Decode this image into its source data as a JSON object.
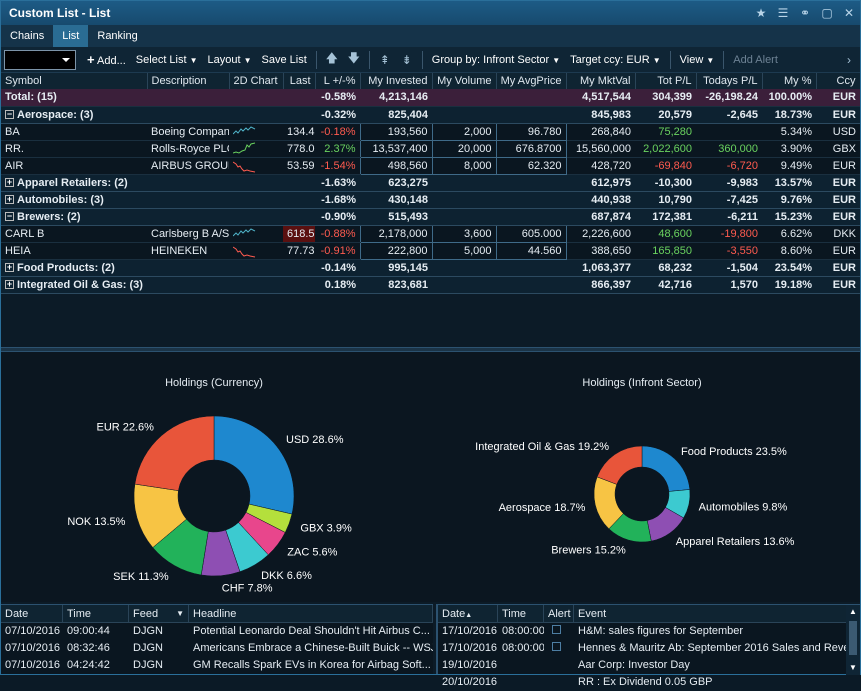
{
  "window": {
    "title": "Custom List - List"
  },
  "tabs": [
    "Chains",
    "List",
    "Ranking"
  ],
  "toolbar": {
    "add": "Add...",
    "select_list": "Select List",
    "layout": "Layout",
    "save_list": "Save List",
    "group_by": "Group by: Infront Sector",
    "target_ccy": "Target ccy: EUR",
    "view": "View",
    "add_alert": "Add Alert"
  },
  "columns": [
    "Symbol",
    "Description",
    "2D Chart",
    "Last",
    "L +/-%",
    "My Invested",
    "My Volume",
    "My AvgPrice",
    "My MktVal",
    "Tot P/L",
    "Todays P/L",
    "My %",
    "Ccy"
  ],
  "rows": [
    {
      "type": "total",
      "symbol": "Total: (15)",
      "desc": "",
      "last": "",
      "chg": "-0.58%",
      "invested": "4,213,146",
      "volume": "",
      "avg": "",
      "mktval": "4,517,544",
      "totpl": "304,399",
      "todpl": "-26,198.24",
      "pct": "100.00%",
      "ccy": "EUR"
    },
    {
      "type": "group",
      "open": true,
      "symbol": "Aerospace: (3)",
      "chg": "-0.32%",
      "invested": "825,404",
      "mktval": "845,983",
      "totpl": "20,579",
      "todpl": "-2,645",
      "pct": "18.73%",
      "ccy": "EUR"
    },
    {
      "type": "item",
      "symbol": "BA",
      "desc": "Boeing Company",
      "last": "134.42",
      "chg": "-0.18%",
      "invested": "193,560",
      "volume": "2,000",
      "avg": "96.780",
      "mktval": "268,840",
      "totpl": "75,280",
      "todpl": "",
      "pct": "5.34%",
      "ccy": "USD",
      "spark": "teal"
    },
    {
      "type": "item",
      "symbol": "RR.",
      "desc": "Rolls-Royce PLC",
      "last": "778.00",
      "chg": "2.37%",
      "invested": "13,537,400",
      "volume": "20,000",
      "avg": "676.8700",
      "mktval": "15,560,000",
      "totpl": "2,022,600",
      "todpl": "360,000",
      "pct": "3.90%",
      "ccy": "GBX",
      "spark": "green"
    },
    {
      "type": "item",
      "symbol": "AIR",
      "desc": "AIRBUS GROUP",
      "last": "53.59",
      "chg": "-1.54%",
      "invested": "498,560",
      "volume": "8,000",
      "avg": "62.320",
      "mktval": "428,720",
      "totpl": "-69,840",
      "todpl": "-6,720",
      "pct": "9.49%",
      "ccy": "EUR",
      "spark": "red"
    },
    {
      "type": "group",
      "open": false,
      "symbol": "Apparel Retailers: (2)",
      "chg": "-1.63%",
      "invested": "623,275",
      "mktval": "612,975",
      "totpl": "-10,300",
      "todpl": "-9,983",
      "pct": "13.57%",
      "ccy": "EUR"
    },
    {
      "type": "group",
      "open": false,
      "symbol": "Automobiles: (3)",
      "chg": "-1.68%",
      "invested": "430,148",
      "mktval": "440,938",
      "totpl": "10,790",
      "todpl": "-7,425",
      "pct": "9.76%",
      "ccy": "EUR"
    },
    {
      "type": "group",
      "open": true,
      "symbol": "Brewers: (2)",
      "chg": "-0.90%",
      "invested": "515,493",
      "mktval": "687,874",
      "totpl": "172,381",
      "todpl": "-6,211",
      "pct": "15.23%",
      "ccy": "EUR"
    },
    {
      "type": "item",
      "symbol": "CARL B",
      "desc": "Carlsberg B A/S",
      "last": "618.50",
      "lasthl": true,
      "chg": "-0.88%",
      "invested": "2,178,000",
      "volume": "3,600",
      "avg": "605.000",
      "mktval": "2,226,600",
      "totpl": "48,600",
      "todpl": "-19,800",
      "pct": "6.62%",
      "ccy": "DKK",
      "spark": "teal"
    },
    {
      "type": "item",
      "symbol": "HEIA",
      "desc": "HEINEKEN",
      "last": "77.73",
      "chg": "-0.91%",
      "invested": "222,800",
      "volume": "5,000",
      "avg": "44.560",
      "mktval": "388,650",
      "totpl": "165,850",
      "todpl": "-3,550",
      "pct": "8.60%",
      "ccy": "EUR",
      "spark": "red"
    },
    {
      "type": "group",
      "open": false,
      "symbol": "Food Products: (2)",
      "chg": "-0.14%",
      "invested": "995,145",
      "mktval": "1,063,377",
      "totpl": "68,232",
      "todpl": "-1,504",
      "pct": "23.54%",
      "ccy": "EUR"
    },
    {
      "type": "group",
      "open": false,
      "symbol": "Integrated Oil & Gas: (3)",
      "chg": "0.18%",
      "invested": "823,681",
      "mktval": "866,397",
      "totpl": "42,716",
      "todpl": "1,570",
      "pct": "19.18%",
      "ccy": "EUR"
    }
  ],
  "colors": {
    "pos": "#6ad35f",
    "neg": "#ff5b4f"
  },
  "chart_data": [
    {
      "type": "pie",
      "title": "Holdings (Currency)",
      "categories": [
        "USD",
        "GBX",
        "ZAC",
        "DKK",
        "CHF",
        "SEK",
        "NOK",
        "EUR"
      ],
      "values": [
        28.6,
        3.9,
        5.6,
        6.6,
        7.8,
        11.3,
        13.5,
        22.6
      ],
      "colors": [
        "#1e88cf",
        "#b4e03c",
        "#e8468c",
        "#3ccad0",
        "#8e4fb3",
        "#22b25a",
        "#f7c444",
        "#e8553a"
      ]
    },
    {
      "type": "pie",
      "title": "Holdings (Infront Sector)",
      "categories": [
        "Food Products",
        "Automobiles",
        "Apparel Retailers",
        "Brewers",
        "Aerospace",
        "Integrated Oil & Gas"
      ],
      "values": [
        23.5,
        9.8,
        13.6,
        15.2,
        18.7,
        19.2
      ],
      "colors": [
        "#1e88cf",
        "#3ccad0",
        "#8e4fb3",
        "#22b25a",
        "#f7c444",
        "#e8553a"
      ]
    }
  ],
  "news": {
    "columns": [
      "Date",
      "Time",
      "Feed",
      "Headline"
    ],
    "rows": [
      {
        "date": "07/10/2016",
        "time": "09:00:44",
        "feed": "DJGN",
        "headline": "Potential Leonardo Deal Shouldn't Hit Airbus C..."
      },
      {
        "date": "07/10/2016",
        "time": "08:32:46",
        "feed": "DJGN",
        "headline": "Americans Embrace a Chinese-Built Buick -- WSJ"
      },
      {
        "date": "07/10/2016",
        "time": "04:24:42",
        "feed": "DJGN",
        "headline": "GM Recalls Spark EVs in Korea for Airbag Soft..."
      }
    ]
  },
  "events": {
    "columns": [
      "Date",
      "Time",
      "Alert",
      "Event"
    ],
    "rows": [
      {
        "date": "17/10/2016",
        "time": "08:00:00",
        "alert": true,
        "event": "H&M: sales figures for September"
      },
      {
        "date": "17/10/2016",
        "time": "08:00:00",
        "alert": true,
        "event": "Hennes & Mauritz Ab: September 2016 Sales and Rever"
      },
      {
        "date": "19/10/2016",
        "time": "",
        "alert": false,
        "event": "Aar Corp: Investor Day"
      },
      {
        "date": "20/10/2016",
        "time": "",
        "alert": false,
        "event": "RR : Ex Dividend 0.05 GBP"
      }
    ]
  }
}
